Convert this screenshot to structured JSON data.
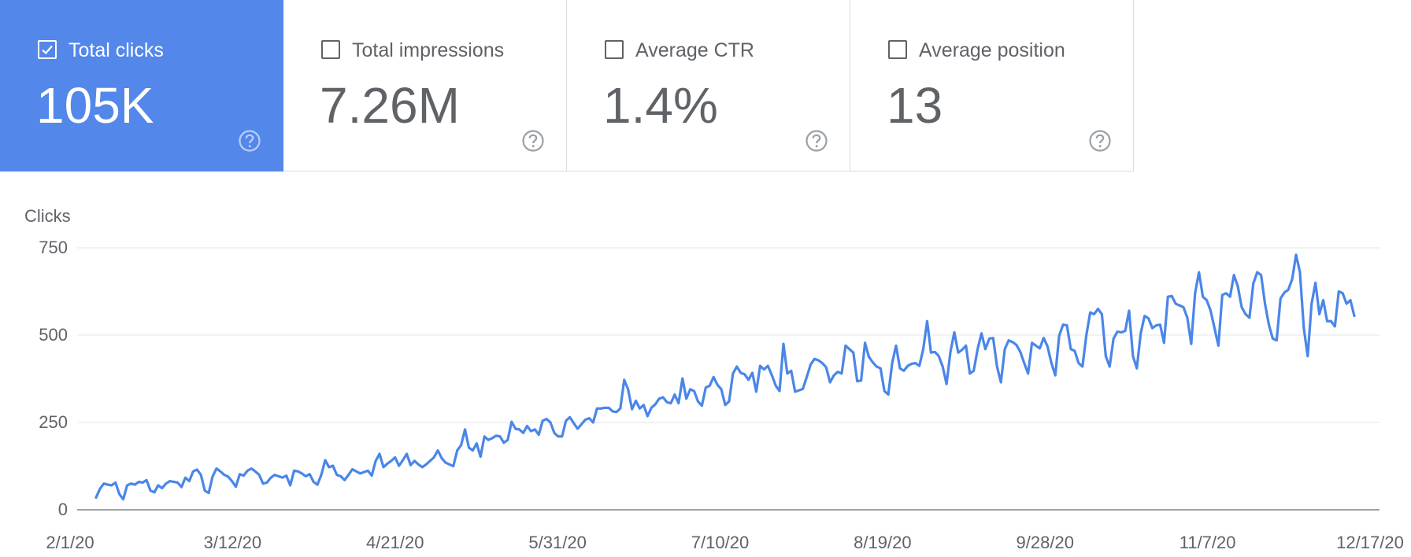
{
  "colors": {
    "accent": "#5387ea",
    "line": "#4a86e8",
    "grid": "#e8eaed",
    "axis": "#80868b",
    "text": "#5f6368"
  },
  "metrics": [
    {
      "label": "Total clicks",
      "value": "105K",
      "selected": true,
      "icon": "help-icon"
    },
    {
      "label": "Total impressions",
      "value": "7.26M",
      "selected": false,
      "icon": "help-icon"
    },
    {
      "label": "Average CTR",
      "value": "1.4%",
      "selected": false,
      "icon": "help-icon"
    },
    {
      "label": "Average position",
      "value": "13",
      "selected": false,
      "icon": "help-icon"
    }
  ],
  "chart_data": {
    "type": "line",
    "title": "",
    "ylabel": "Clicks",
    "xlabel": "",
    "ylim": [
      0,
      750
    ],
    "yticks": [
      0,
      250,
      500,
      750
    ],
    "ytick_labels": [
      "0",
      "250",
      "500",
      "750"
    ],
    "xticks": [
      "2/1/20",
      "3/12/20",
      "4/21/20",
      "5/31/20",
      "7/10/20",
      "8/19/20",
      "9/28/20",
      "11/7/20",
      "12/17/20"
    ],
    "x_range": [
      "2/1/20",
      "12/17/20"
    ],
    "grid": true,
    "legend": "none",
    "series": [
      {
        "weekly_pattern": "daily values with weekend dips",
        "start_date": "2/1/20",
        "values": [
          35,
          60,
          75,
          72,
          70,
          78,
          45,
          30,
          70,
          75,
          72,
          80,
          78,
          85,
          55,
          50,
          70,
          62,
          75,
          82,
          80,
          78,
          65,
          92,
          82,
          110,
          115,
          100,
          55,
          48,
          95,
          118,
          110,
          100,
          95,
          82,
          66,
          102,
          98,
          112,
          118,
          110,
          100,
          75,
          78,
          92,
          100,
          96,
          92,
          98,
          70,
          112,
          110,
          104,
          96,
          102,
          80,
          72,
          100,
          142,
          122,
          126,
          100,
          96,
          85,
          100,
          116,
          110,
          104,
          108,
          112,
          98,
          140,
          160,
          122,
          132,
          140,
          150,
          126,
          142,
          160,
          128,
          140,
          130,
          122,
          130,
          140,
          150,
          170,
          148,
          135,
          130,
          125,
          170,
          185,
          230,
          178,
          170,
          190,
          152,
          210,
          200,
          205,
          212,
          210,
          192,
          200,
          252,
          232,
          230,
          220,
          240,
          225,
          230,
          215,
          255,
          260,
          250,
          220,
          210,
          210,
          255,
          265,
          248,
          232,
          245,
          258,
          262,
          250,
          290,
          290,
          292,
          292,
          282,
          280,
          290,
          372,
          345,
          288,
          312,
          290,
          300,
          268,
          292,
          302,
          318,
          322,
          308,
          305,
          330,
          305,
          376,
          318,
          345,
          340,
          310,
          298,
          350,
          355,
          380,
          358,
          345,
          300,
          310,
          390,
          410,
          392,
          388,
          372,
          392,
          338,
          412,
          402,
          412,
          386,
          356,
          340,
          475,
          390,
          398,
          338,
          342,
          346,
          380,
          416,
          432,
          428,
          420,
          408,
          365,
          385,
          395,
          390,
          470,
          460,
          450,
          368,
          370,
          478,
          438,
          422,
          410,
          405,
          340,
          330,
          420,
          470,
          405,
          398,
          412,
          418,
          420,
          412,
          460,
          540,
          450,
          452,
          440,
          410,
          360,
          452,
          508,
          450,
          458,
          470,
          390,
          398,
          460,
          505,
          460,
          490,
          492,
          410,
          365,
          460,
          485,
          480,
          472,
          452,
          420,
          390,
          478,
          470,
          462,
          492,
          468,
          420,
          385,
          498,
          530,
          528,
          460,
          455,
          420,
          410,
          500,
          565,
          560,
          575,
          560,
          440,
          410,
          490,
          510,
          508,
          512,
          570,
          440,
          405,
          505,
          555,
          548,
          520,
          528,
          530,
          478,
          610,
          612,
          590,
          585,
          580,
          550,
          475,
          620,
          680,
          610,
          600,
          570,
          520,
          470,
          615,
          620,
          610,
          672,
          640,
          580,
          560,
          550,
          648,
          680,
          672,
          590,
          530,
          490,
          485,
          605,
          622,
          630,
          660,
          730,
          680,
          520,
          440,
          590,
          650,
          560,
          600,
          540,
          540,
          525,
          625,
          620,
          590,
          600,
          555
        ]
      }
    ]
  }
}
